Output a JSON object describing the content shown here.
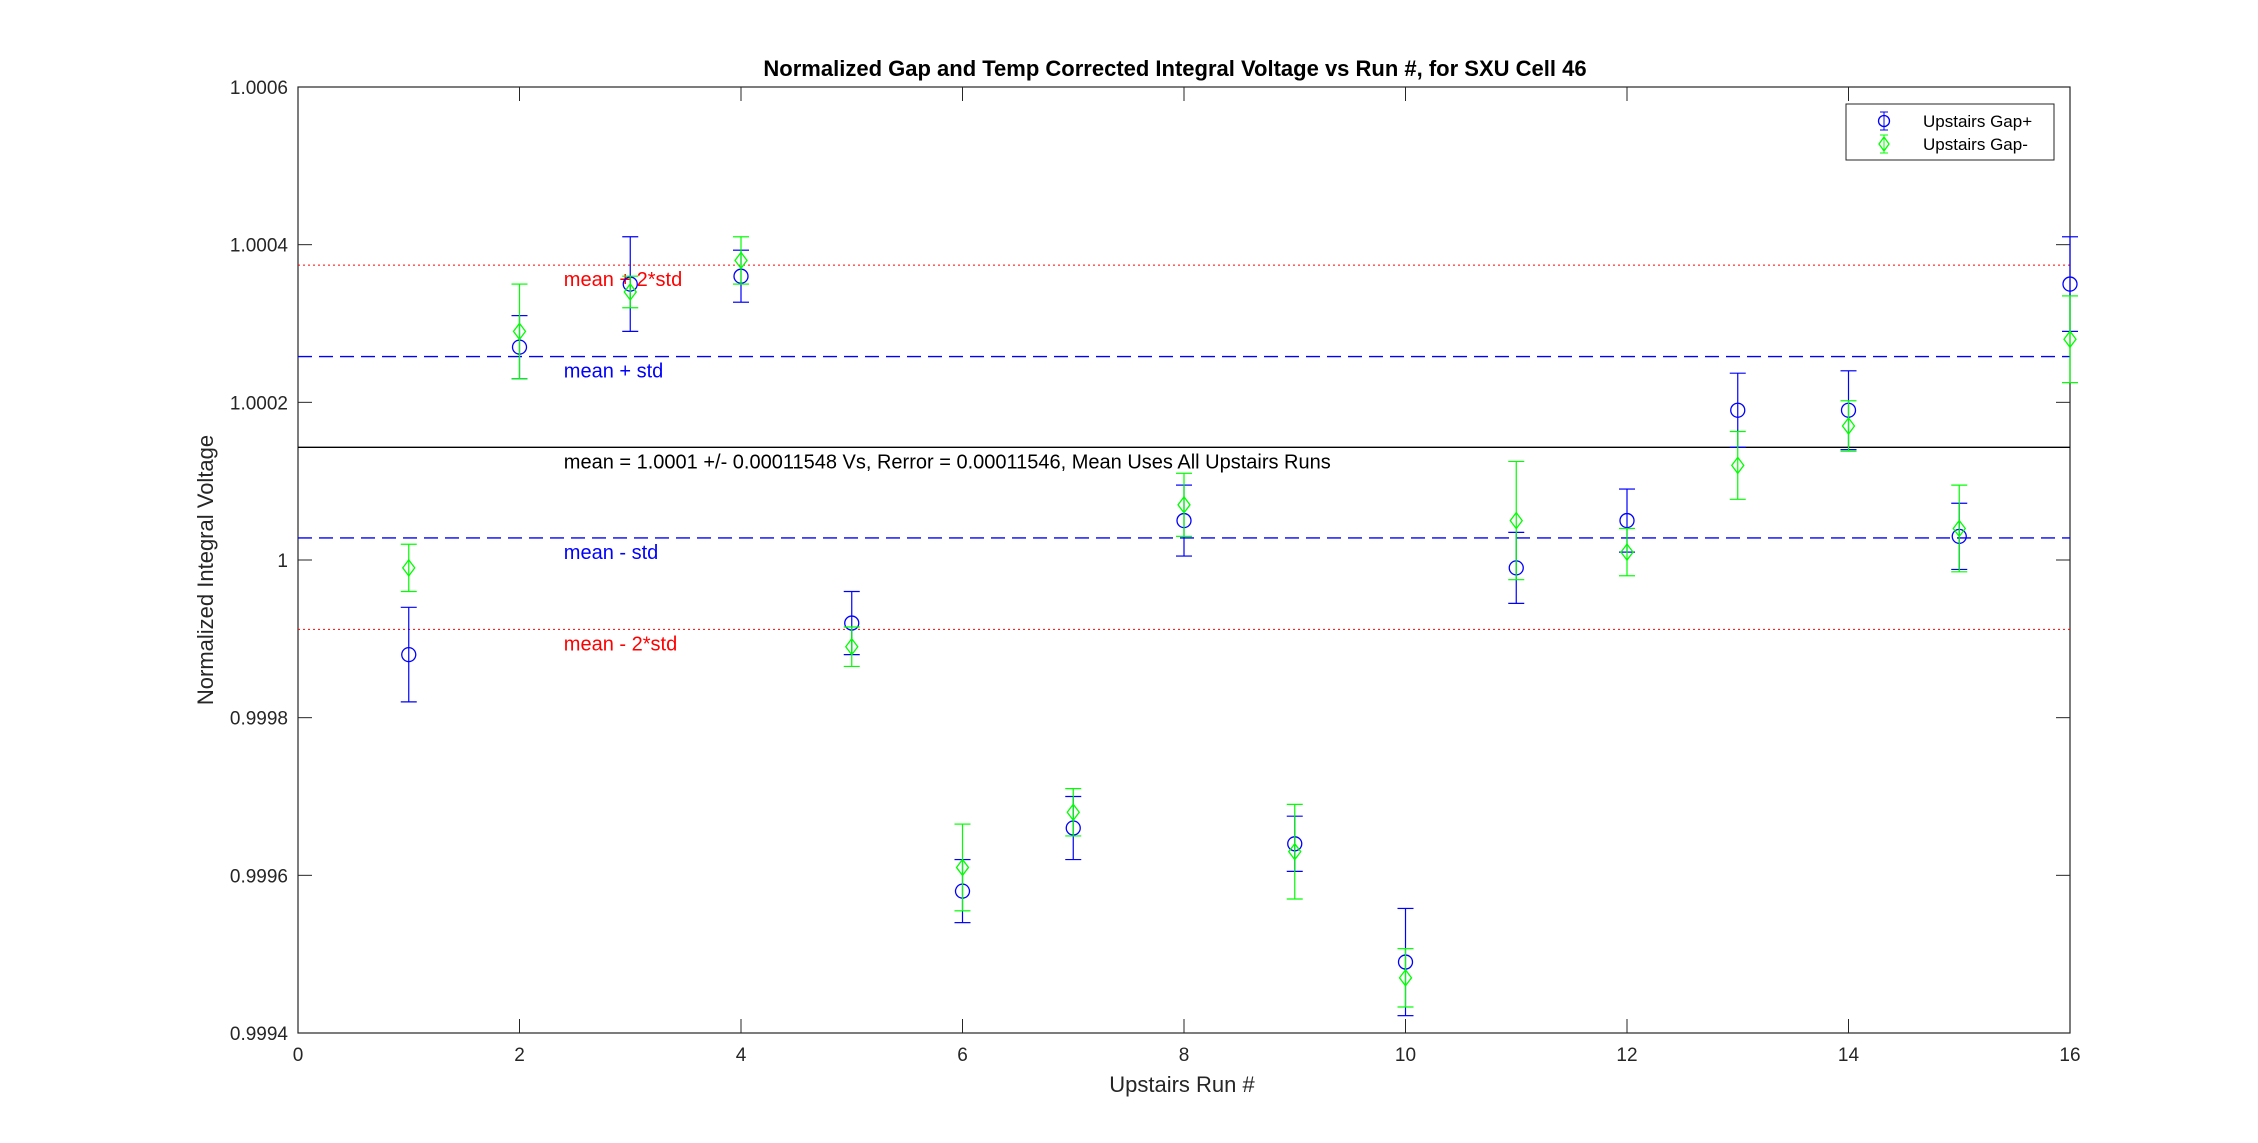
{
  "chart_data": {
    "type": "scatter",
    "title": "Normalized Gap and Temp Corrected Integral Voltage vs Run #, for SXU Cell 46",
    "xlabel": "Upstairs Run #",
    "ylabel": "Normalized Integral Voltage",
    "xlim": [
      0,
      16
    ],
    "ylim": [
      0.9994,
      1.0006
    ],
    "x_ticks": [
      0,
      2,
      4,
      6,
      8,
      10,
      12,
      14,
      16
    ],
    "x_tick_labels": [
      "0",
      "2",
      "4",
      "6",
      "8",
      "10",
      "12",
      "14",
      "16"
    ],
    "y_ticks": [
      0.9994,
      0.9996,
      0.9998,
      1.0,
      1.0002,
      1.0004,
      1.0006
    ],
    "y_tick_labels": [
      "0.9994",
      "0.9996",
      "0.9998",
      "1",
      "1.0002",
      "1.0004",
      "1.0006"
    ],
    "grid": false,
    "legend_position": "top-right",
    "series": [
      {
        "name": "Upstairs Gap+",
        "color": "#0000ff",
        "marker": "circle",
        "x": [
          1,
          2,
          3,
          4,
          5,
          6,
          7,
          8,
          9,
          10,
          11,
          12,
          13,
          14,
          15,
          16
        ],
        "y": [
          0.99988,
          1.00027,
          1.00035,
          1.00036,
          0.99992,
          0.99958,
          0.99966,
          1.00005,
          0.99964,
          0.99949,
          0.99999,
          1.00005,
          1.00019,
          1.00019,
          1.00003,
          1.00035
        ],
        "err": [
          6e-05,
          4e-05,
          6e-05,
          3.3e-05,
          4e-05,
          4e-05,
          4e-05,
          4.5e-05,
          3.5e-05,
          6.8e-05,
          4.5e-05,
          4e-05,
          4.7e-05,
          5e-05,
          4.2e-05,
          6e-05
        ]
      },
      {
        "name": "Upstairs Gap-",
        "color": "#00ff00",
        "marker": "diamond",
        "x": [
          1,
          2,
          3,
          4,
          5,
          6,
          7,
          8,
          9,
          10,
          11,
          12,
          13,
          14,
          15,
          16
        ],
        "y": [
          0.99999,
          1.00029,
          1.00034,
          1.00038,
          0.99989,
          0.99961,
          0.99968,
          1.00007,
          0.99963,
          0.99947,
          1.00005,
          1.00001,
          1.00012,
          1.00017,
          1.00004,
          1.00028
        ],
        "err": [
          3e-05,
          6e-05,
          2e-05,
          3e-05,
          2.5e-05,
          5.5e-05,
          3e-05,
          4e-05,
          6e-05,
          3.7e-05,
          7.5e-05,
          3e-05,
          4.3e-05,
          3.2e-05,
          5.5e-05,
          5.5e-05
        ]
      }
    ],
    "reference_lines": [
      {
        "id": "mean",
        "y": 1.000143,
        "color": "#000000",
        "style": "solid",
        "label": "mean = 1.0001 +/- 0.00011548 Vs, Rerror = 0.00011546, Mean Uses All Upstairs Runs",
        "label_color": "#000000"
      },
      {
        "id": "plus_std",
        "y": 1.000258,
        "color": "#0000ff",
        "style": "dashed",
        "label": "mean + std",
        "label_color": "#0000ff"
      },
      {
        "id": "minus_std",
        "y": 1.000028,
        "color": "#0000ff",
        "style": "dashed",
        "label": "mean - std",
        "label_color": "#0000ff"
      },
      {
        "id": "plus_2std",
        "y": 1.000374,
        "color": "#ff0000",
        "style": "dotted",
        "label": "mean + 2*std",
        "label_color": "#ff0000"
      },
      {
        "id": "minus_2std",
        "y": 0.999912,
        "color": "#ff0000",
        "style": "dotted",
        "label": "mean - 2*std",
        "label_color": "#ff0000"
      }
    ]
  }
}
